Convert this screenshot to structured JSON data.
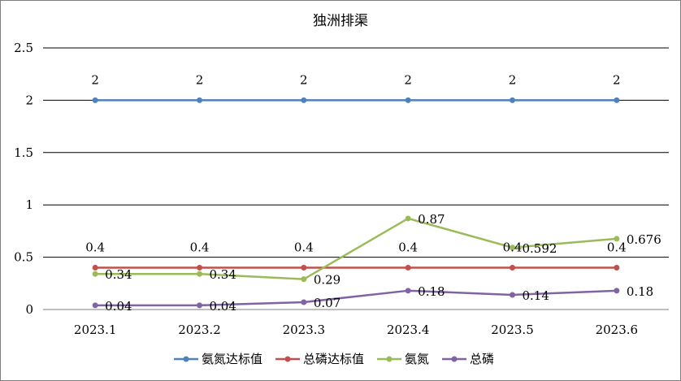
{
  "chart_data": {
    "type": "line",
    "title": "独洲排渠",
    "xlabel": "",
    "ylabel": "",
    "categories": [
      "2023.1",
      "2023.2",
      "2023.3",
      "2023.4",
      "2023.5",
      "2023.6"
    ],
    "y_ticks": [
      "0",
      "0.5",
      "1",
      "1.5",
      "2",
      "2.5"
    ],
    "ylim": [
      0,
      2.5
    ],
    "grid": true,
    "legend_position": "bottom",
    "series": [
      {
        "name": "氨氮达标值",
        "color": "#4f81bd",
        "values": [
          2,
          2,
          2,
          2,
          2,
          2
        ],
        "labels": [
          "2",
          "2",
          "2",
          "2",
          "2",
          "2"
        ]
      },
      {
        "name": "总磷达标值",
        "color": "#c0504d",
        "values": [
          0.4,
          0.4,
          0.4,
          0.4,
          0.4,
          0.4
        ],
        "labels": [
          "0.4",
          "0.4",
          "0.4",
          "0.4",
          "0.4",
          "0.4"
        ]
      },
      {
        "name": "氨氮",
        "color": "#9bbb59",
        "values": [
          0.34,
          0.34,
          0.29,
          0.87,
          0.592,
          0.676
        ],
        "labels": [
          "0.34",
          "0.34",
          "0.29",
          "0.87",
          "0.592",
          "0.676"
        ]
      },
      {
        "name": "总磷",
        "color": "#8064a2",
        "values": [
          0.04,
          0.04,
          0.07,
          0.18,
          0.14,
          0.18
        ],
        "labels": [
          "0.04",
          "0.04",
          "0.07",
          "0.18",
          "0.14",
          "0.18"
        ]
      }
    ]
  }
}
